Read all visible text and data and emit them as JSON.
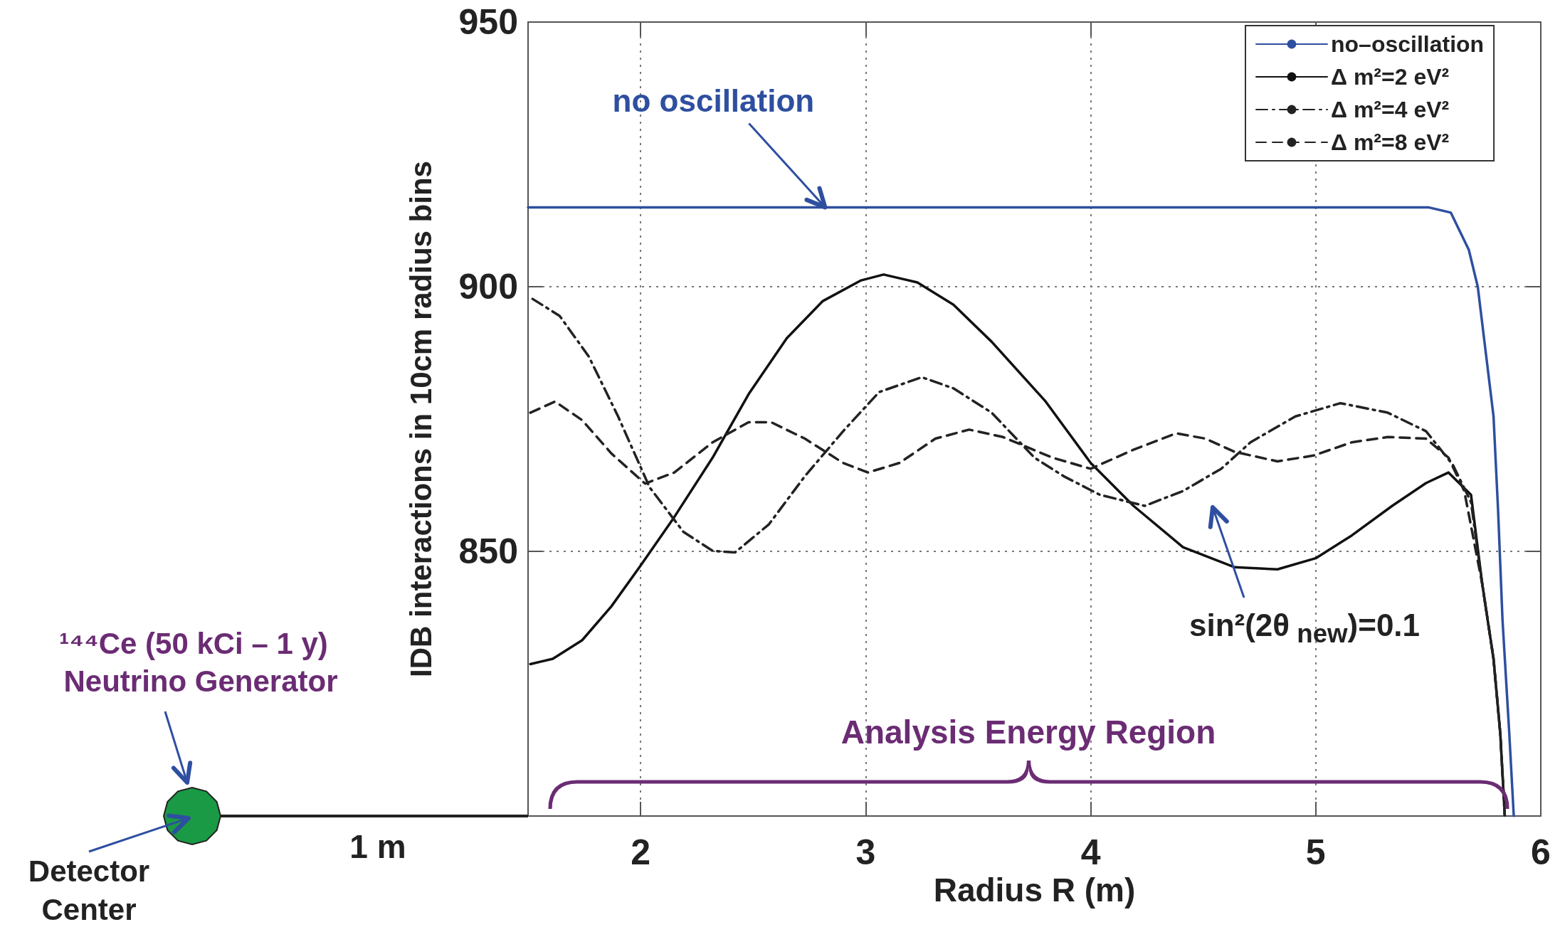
{
  "chart_data": {
    "type": "line",
    "xlabel": "Radius R (m)",
    "ylabel": "IDB interactions in 10cm radius bins",
    "xlim": [
      1.5,
      6
    ],
    "xticks": [
      2,
      3,
      4,
      5,
      6
    ],
    "ylim": [
      800,
      950
    ],
    "yticks": [
      850,
      900,
      950
    ],
    "grid": true,
    "legend": "top right",
    "marker": "none",
    "series": [
      {
        "name": "no–oscillation",
        "color": "#2e4fa0",
        "line_style": "solid",
        "x": [
          1.5,
          5.5,
          5.6,
          5.68,
          5.72,
          5.79,
          5.81,
          5.83,
          5.86,
          5.88
        ],
        "values": [
          915,
          915,
          914,
          907,
          900,
          875.5,
          858,
          837,
          815.6,
          800
        ]
      },
      {
        "name": "Δ m²=2 eV²",
        "color": "#111111",
        "line_style": "solid",
        "x": [
          1.51,
          1.61,
          1.74,
          1.87,
          2.0,
          2.15,
          2.32,
          2.48,
          2.65,
          2.81,
          2.98,
          3.08,
          3.23,
          3.39,
          3.56,
          3.8,
          4.0,
          4.19,
          4.41,
          4.64,
          4.83,
          5.0,
          5.16,
          5.34,
          5.49,
          5.59,
          5.69,
          5.74,
          5.79,
          5.82,
          5.84
        ],
        "values": [
          828.7,
          829.7,
          833.2,
          839.6,
          847.3,
          856.5,
          867.7,
          879.7,
          890.3,
          897.3,
          901.2,
          902.3,
          900.8,
          896.6,
          889.6,
          878.3,
          866.7,
          858.6,
          850.8,
          847,
          846.6,
          848.7,
          853,
          858.6,
          862.9,
          864.9,
          860.7,
          843.8,
          829.7,
          815.6,
          800.1
        ]
      },
      {
        "name": "Δ m²=4 eV²",
        "color": "#222222",
        "line_style": "dashdot",
        "x": [
          1.52,
          1.64,
          1.77,
          1.9,
          2.04,
          2.19,
          2.32,
          2.42,
          2.57,
          2.73,
          2.9,
          3.06,
          3.25,
          3.39,
          3.56,
          3.75,
          3.88,
          4.04,
          4.24,
          4.41,
          4.58,
          4.71,
          4.91,
          5.11,
          5.32,
          5.49,
          5.61,
          5.69,
          5.74,
          5.79,
          5.82,
          5.84
        ],
        "values": [
          897.7,
          894.5,
          886.8,
          875.5,
          862.1,
          853.7,
          850.1,
          849.8,
          855.1,
          864.2,
          872.7,
          880.1,
          882.9,
          880.8,
          876.2,
          867.7,
          864.2,
          860.7,
          858.6,
          861.4,
          865.6,
          870.6,
          875.5,
          878,
          876.2,
          872.7,
          866.3,
          859.3,
          843.8,
          829.7,
          815.6,
          800.1
        ]
      },
      {
        "name": "Δ m²=8 eV²",
        "color": "#222222",
        "line_style": "dashed",
        "x": [
          1.51,
          1.62,
          1.74,
          1.87,
          2.02,
          2.15,
          2.32,
          2.48,
          2.58,
          2.73,
          2.9,
          3.01,
          3.15,
          3.31,
          3.46,
          3.61,
          3.83,
          4.0,
          4.19,
          4.38,
          4.51,
          4.64,
          4.83,
          4.99,
          5.16,
          5.32,
          5.49,
          5.59,
          5.66,
          5.74,
          5.79,
          5.82,
          5.84
        ],
        "values": [
          876.2,
          878.3,
          874.8,
          868.5,
          862.8,
          864.9,
          870.6,
          874.4,
          874.4,
          871.3,
          866.7,
          864.9,
          866.7,
          871.3,
          873,
          871.6,
          867.7,
          865.6,
          869.2,
          872.3,
          871.3,
          868.8,
          867,
          868.1,
          870.6,
          871.6,
          871.3,
          867.7,
          861.4,
          843.8,
          829.7,
          815.6,
          800.1
        ]
      }
    ],
    "annotations": [
      {
        "text": "no oscillation",
        "x": 2.82,
        "y": 915
      },
      "sin²(2θ$_{ new}$)=0.1",
      "Analysis Energy Region",
      "¹⁴⁴Ce (50 kCi – 1 y)",
      "Neutrino Generator",
      "Detector Center",
      "1 m"
    ]
  }
}
